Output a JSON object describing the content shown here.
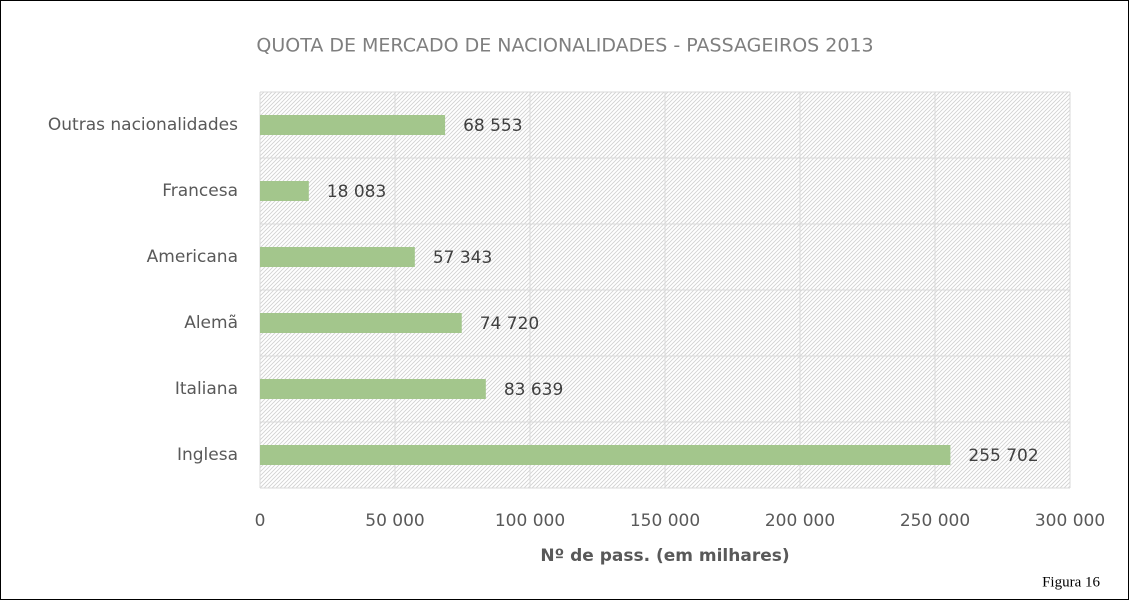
{
  "chart_data": {
    "type": "bar",
    "orientation": "horizontal",
    "title": "QUOTA DE MERCADO DE NACIONALIDADES  - PASSAGEIROS 2013",
    "x_label": "Nº de pass. (em milhares)",
    "categories": [
      "Outras nacionalidades",
      "Francesa",
      "Americana",
      "Alemã",
      "Italiana",
      "Inglesa"
    ],
    "values": [
      68553,
      18083,
      57343,
      74720,
      83639,
      255702
    ],
    "value_labels": [
      "68 553",
      "18 083",
      "57 343",
      "74 720",
      "83 639",
      "255 702"
    ],
    "color": "#a3c68c",
    "xlim": [
      0,
      300000
    ],
    "xticks": [
      0,
      {
        "value": 50000,
        "label": "50 000"
      },
      {
        "value": 100000,
        "label": "100 000"
      },
      {
        "value": 150000,
        "label": "150 000"
      },
      {
        "value": 200000,
        "label": "200 000"
      },
      {
        "value": 250000,
        "label": "250 000"
      },
      {
        "value": 300000,
        "label": "300 000"
      }
    ],
    "grid": true
  },
  "caption": "Figura 16"
}
